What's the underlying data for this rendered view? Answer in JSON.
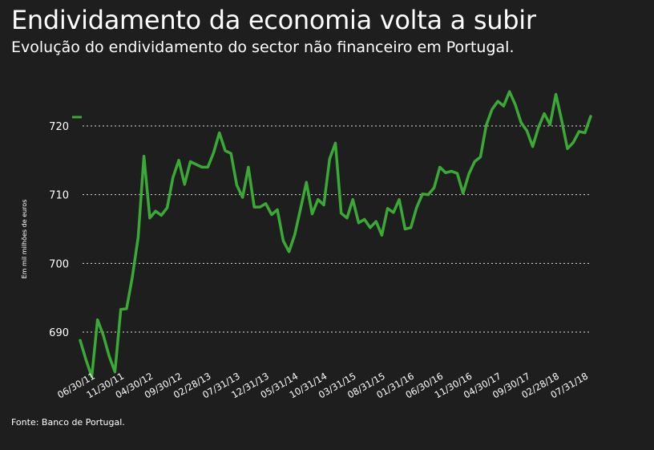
{
  "header": {
    "title": "Endividamento da economia volta a subir",
    "subtitle": "Evolução do endividamento do sector não financeiro em Portugal.",
    "source": "Fonte: Banco de Portugal."
  },
  "colors": {
    "background": "#1e1e1e",
    "line": "#3aa935",
    "grid": "#dddddd",
    "text": "#ffffff"
  },
  "chart_data": {
    "type": "line",
    "title": "Endividamento da economia volta a subir",
    "subtitle": "Evolução do endividamento do sector não financeiro em Portugal.",
    "ylabel": "Em mil milhões de euros",
    "ylim": [
      683.5,
      722
    ],
    "yticks": [
      690,
      700,
      710,
      720
    ],
    "ytick_labels": [
      "690",
      "700",
      "710",
      "720"
    ],
    "grid": "horizontal dotted",
    "x_tick_labels": [
      "06/30/11",
      "11/30/11",
      "04/30/12",
      "09/30/12",
      "02/28/13",
      "07/31/13",
      "12/31/13",
      "05/31/14",
      "10/31/14",
      "03/31/15",
      "08/31/15",
      "01/31/16",
      "06/30/16",
      "11/30/16",
      "04/30/17",
      "09/30/17",
      "02/28/18",
      "07/31/18"
    ],
    "x_tick_index": [
      0,
      5,
      10,
      15,
      20,
      25,
      30,
      35,
      40,
      45,
      50,
      55,
      60,
      65,
      70,
      75,
      80,
      85
    ],
    "series": [
      {
        "values": [
          688.8,
          686.0,
          683.5,
          691.8,
          689.5,
          686.5,
          684.2,
          693.3,
          693.4,
          698.0,
          703.8,
          715.6,
          706.6,
          707.6,
          707.0,
          708.1,
          712.5,
          715.0,
          711.5,
          714.8,
          714.4,
          714.0,
          714.0,
          716.1,
          719.0,
          716.4,
          716.0,
          711.4,
          709.6,
          714.0,
          708.2,
          708.2,
          708.7,
          707.1,
          707.8,
          703.3,
          701.7,
          704.2,
          708.0,
          711.8,
          707.2,
          709.3,
          708.5,
          715.2,
          717.5,
          707.3,
          706.6,
          709.3,
          705.9,
          706.4,
          705.2,
          706.1,
          704.1,
          708.0,
          707.4,
          709.3,
          705.0,
          705.2,
          708.1,
          710.1,
          710.0,
          711.0,
          714.0,
          713.2,
          713.4,
          713.1,
          710.2,
          713.0,
          714.8,
          715.5,
          720.1,
          722.4,
          723.6,
          722.9,
          725.0,
          723.1,
          720.5,
          719.3,
          717.0,
          719.8,
          721.8,
          720.2,
          724.6,
          720.8,
          716.7,
          717.6,
          719.2,
          719.0,
          721.4
        ]
      }
    ]
  }
}
